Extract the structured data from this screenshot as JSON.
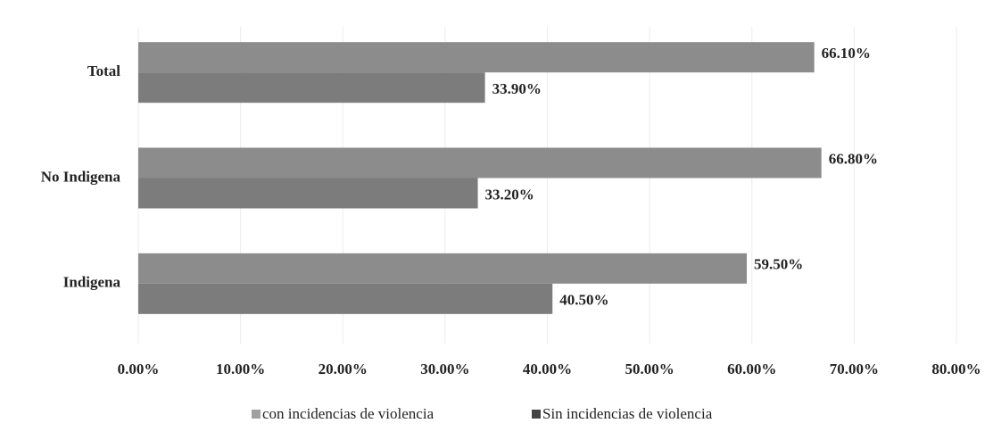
{
  "chart_data": {
    "type": "bar",
    "orientation": "horizontal",
    "categories": [
      "Total",
      "No Indigena",
      "Indigena"
    ],
    "series": [
      {
        "name": "con incidencias de violencia",
        "color": "#8c8c8c",
        "values": [
          66.1,
          66.8,
          59.5
        ],
        "value_labels": [
          "66.10%",
          "66.80%",
          "59.50%"
        ]
      },
      {
        "name": "Sin incidencias de violencia",
        "color": "#7c7c7c",
        "values": [
          33.9,
          33.2,
          40.5
        ],
        "value_labels": [
          "33.90%",
          "33.20%",
          "40.50%"
        ]
      }
    ],
    "xlim": [
      0,
      80
    ],
    "xticks": [
      {
        "value": 0,
        "label": "0.00%"
      },
      {
        "value": 10,
        "label": "10.00%"
      },
      {
        "value": 20,
        "label": "20.00%"
      },
      {
        "value": 30,
        "label": "30.00%"
      },
      {
        "value": 40,
        "label": "40.00%"
      },
      {
        "value": 50,
        "label": "50.00%"
      },
      {
        "value": 60,
        "label": "60.00%"
      },
      {
        "value": 70,
        "label": "70.00%"
      },
      {
        "value": 80,
        "label": "80.00%"
      }
    ],
    "grid": true,
    "legend": "bottom"
  }
}
